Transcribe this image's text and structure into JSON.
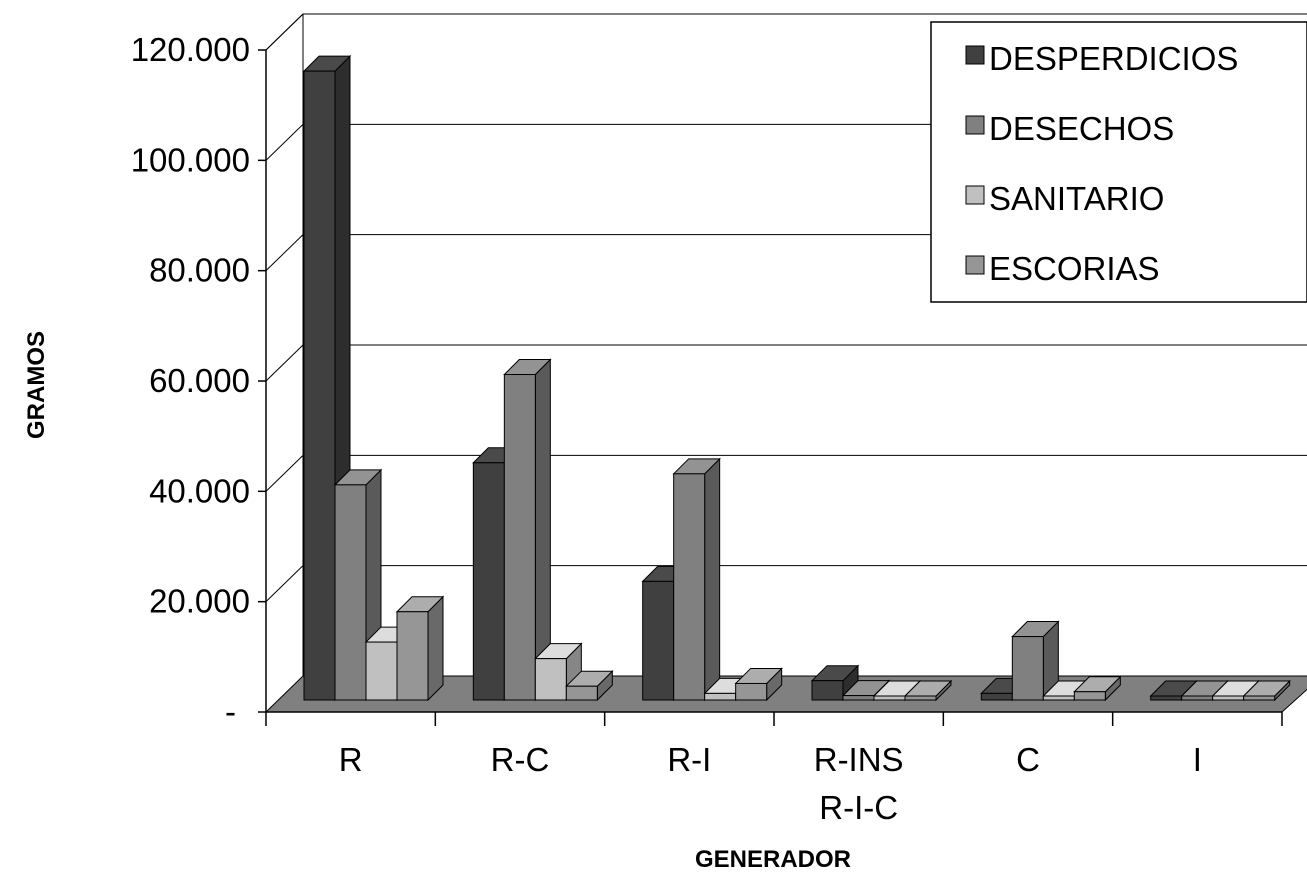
{
  "chart_data": {
    "type": "bar",
    "xlabel": "GENERADOR",
    "ylabel": "GRAMOS",
    "ylim": [
      0,
      120000
    ],
    "yticks": [
      {
        "value": 0,
        "label": "-"
      },
      {
        "value": 20000,
        "label": "20.000"
      },
      {
        "value": 40000,
        "label": "40.000"
      },
      {
        "value": 60000,
        "label": "60.000"
      },
      {
        "value": 80000,
        "label": "80.000"
      },
      {
        "value": 100000,
        "label": "100.000"
      },
      {
        "value": 120000,
        "label": "120.000"
      }
    ],
    "categories": [
      {
        "line1": "R",
        "line2": ""
      },
      {
        "line1": "R-C",
        "line2": ""
      },
      {
        "line1": "R-I",
        "line2": ""
      },
      {
        "line1": "R-INS",
        "line2": "R-I-C"
      },
      {
        "line1": "C",
        "line2": ""
      },
      {
        "line1": "I",
        "line2": ""
      }
    ],
    "series": [
      {
        "name": "DESPERDICIOS",
        "color": "#404040",
        "values": [
          114000,
          43000,
          21500,
          3500,
          1200,
          300
        ]
      },
      {
        "name": "DESECHOS",
        "color": "#808080",
        "values": [
          39000,
          59000,
          41000,
          800,
          11500,
          300
        ]
      },
      {
        "name": "SANITARIO",
        "color": "#c0c0c0",
        "values": [
          10500,
          7500,
          1200,
          300,
          500,
          200
        ]
      },
      {
        "name": "ESCORIAS",
        "color": "#969696",
        "values": [
          16000,
          2500,
          3000,
          200,
          1500,
          200
        ]
      }
    ],
    "grid": true,
    "legend_position": "top-right"
  }
}
